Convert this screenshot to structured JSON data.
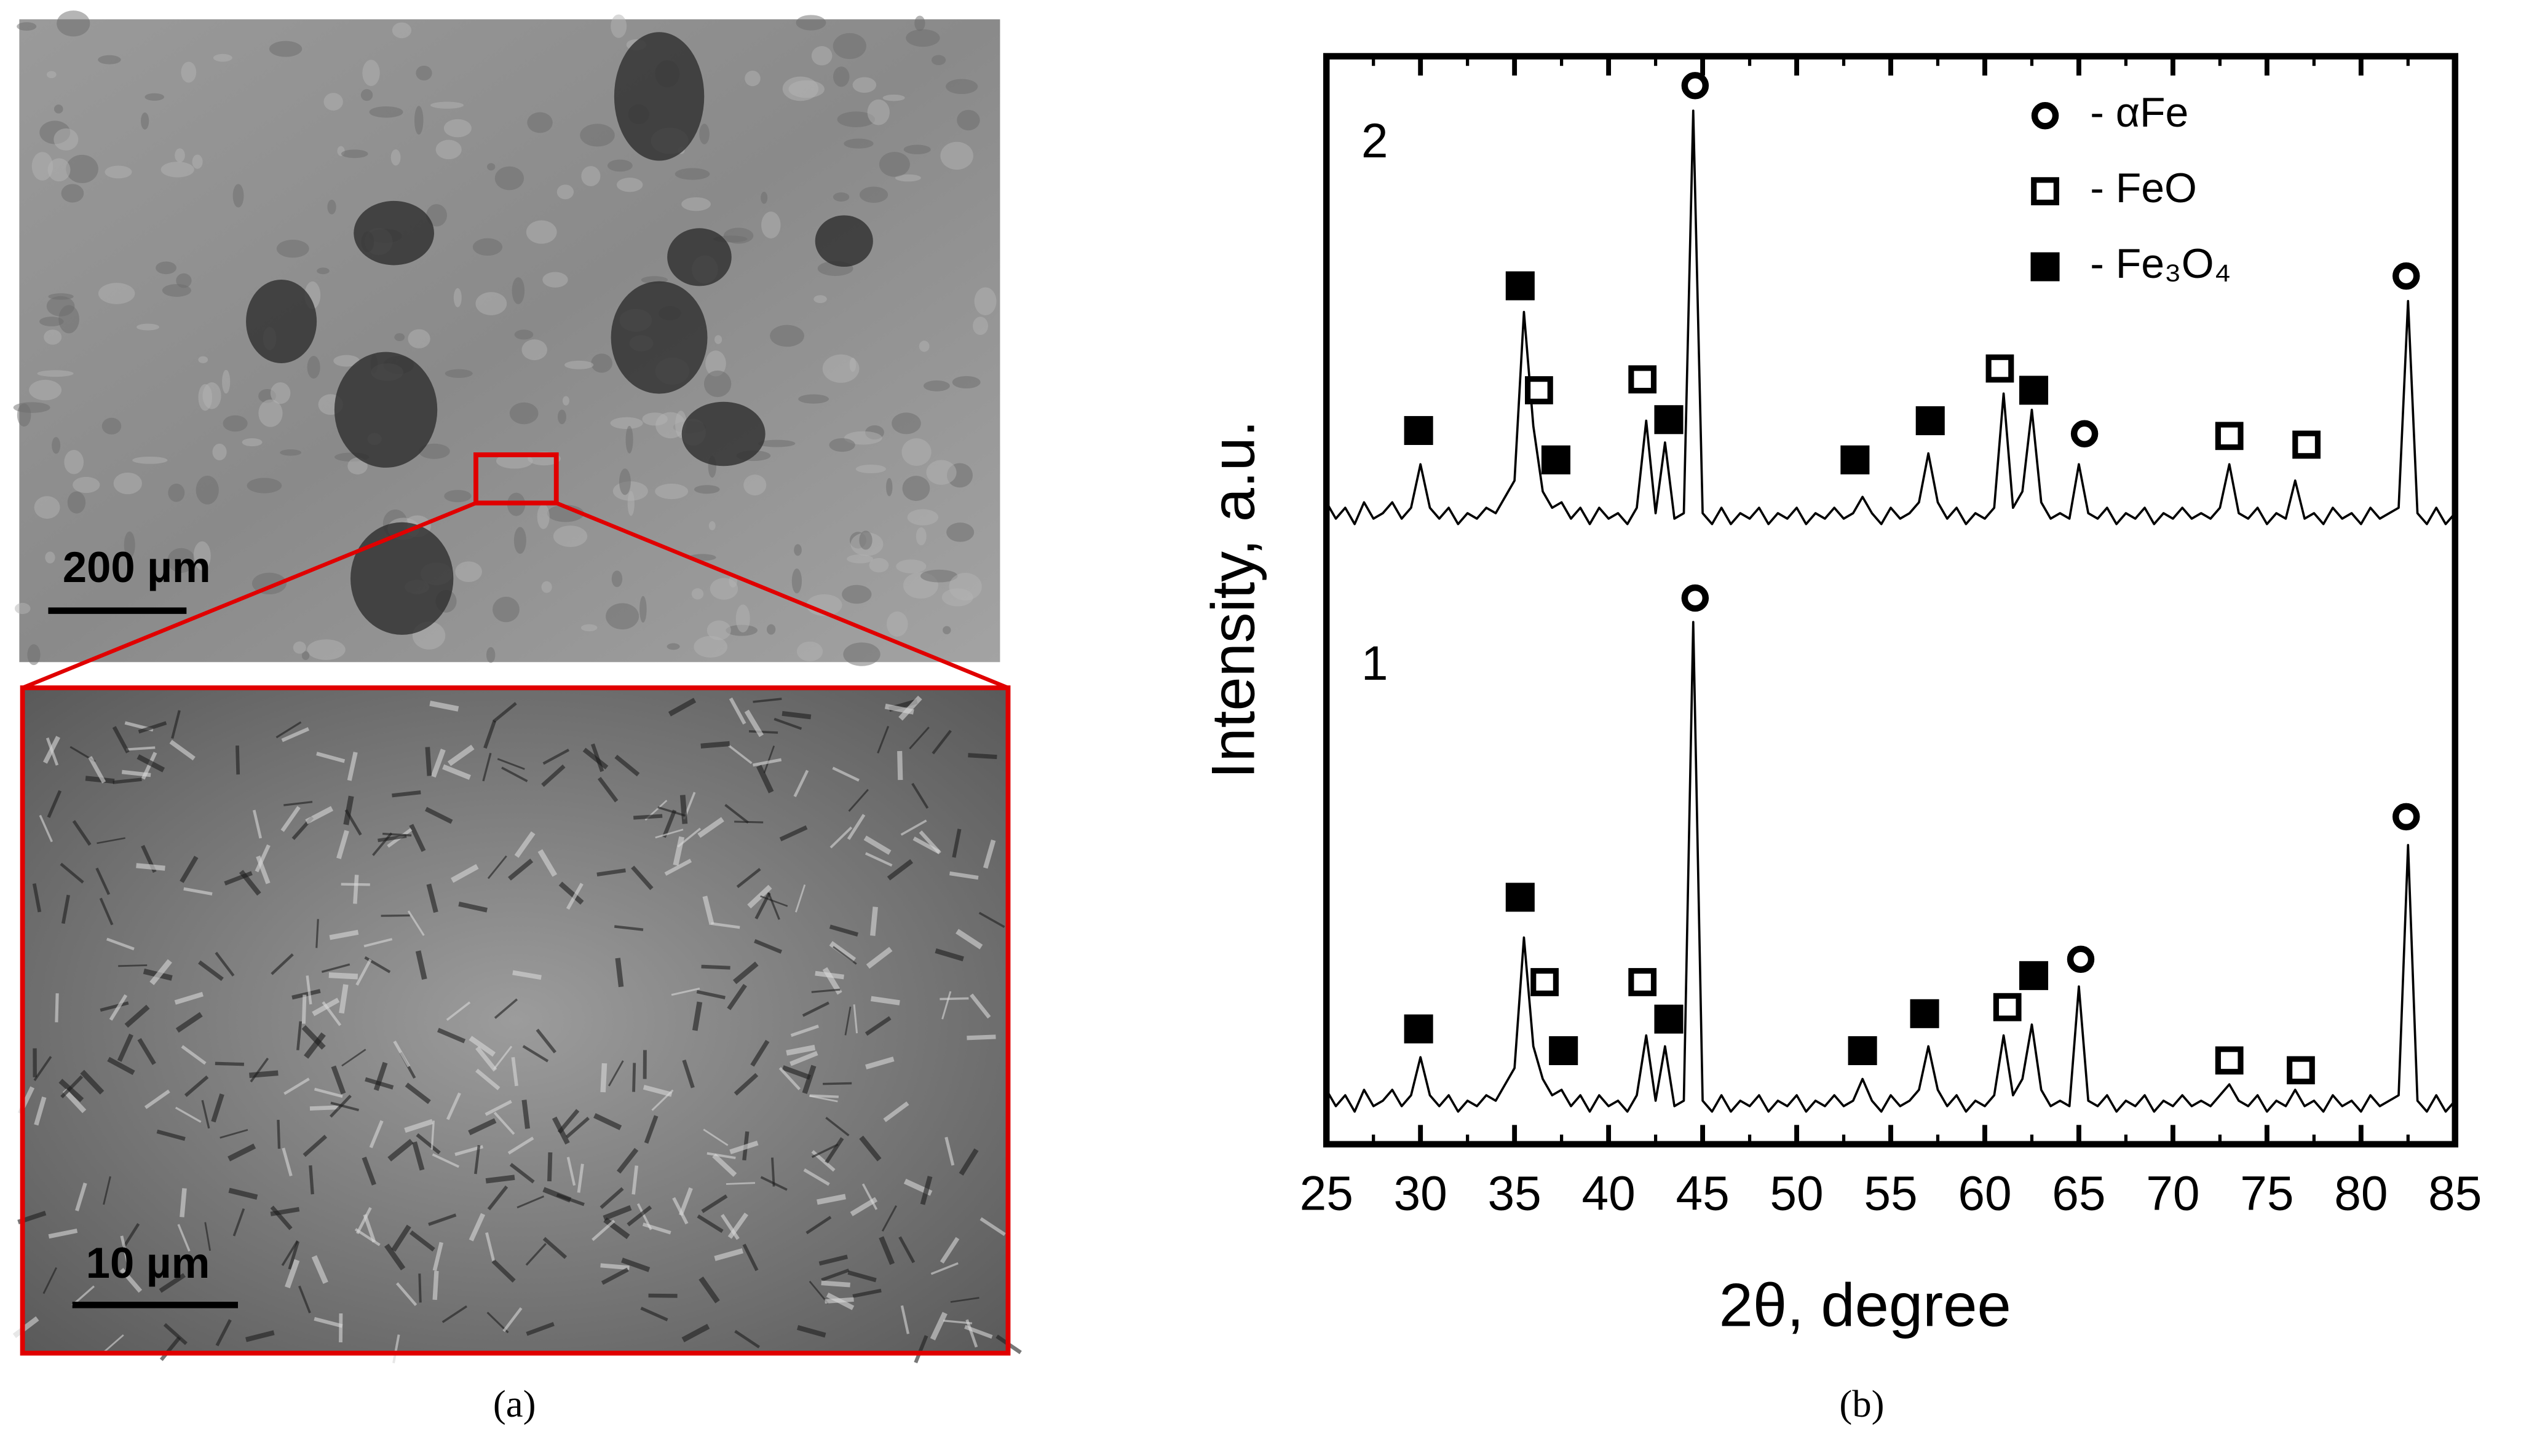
{
  "panel_a": {
    "scale_bar_top": "200 µm",
    "scale_bar_bottom": "10 µm",
    "caption": "(a)"
  },
  "chart_data": {
    "type": "line",
    "caption": "(b)",
    "x_label": "2θ, degree",
    "y_label": "Intensity, a.u.",
    "xlim": [
      25,
      85
    ],
    "xticks": [
      25,
      30,
      35,
      40,
      45,
      50,
      55,
      60,
      65,
      70,
      75,
      80,
      85
    ],
    "minor_xticks": true,
    "ylim": [
      0,
      100
    ],
    "x": [
      25,
      25.5,
      26,
      26.5,
      27,
      27.5,
      28,
      28.5,
      29,
      29.5,
      30,
      30.5,
      31,
      31.5,
      32,
      32.5,
      33,
      33.5,
      34,
      34.5,
      35,
      35.5,
      36,
      36.5,
      37,
      37.5,
      38,
      38.5,
      39,
      39.5,
      40,
      40.5,
      41,
      41.5,
      42,
      42.5,
      43,
      43.5,
      44,
      44.5,
      45,
      45.5,
      46,
      46.5,
      47,
      47.5,
      48,
      48.5,
      49,
      49.5,
      50,
      50.5,
      51,
      51.5,
      52,
      52.5,
      53,
      53.5,
      54,
      54.5,
      55,
      55.5,
      56,
      56.5,
      57,
      57.5,
      58,
      58.5,
      59,
      59.5,
      60,
      60.5,
      61,
      61.5,
      62,
      62.5,
      63,
      63.5,
      64,
      64.5,
      65,
      65.5,
      66,
      66.5,
      67,
      67.5,
      68,
      68.5,
      69,
      69.5,
      70,
      70.5,
      71,
      71.5,
      72,
      72.5,
      73,
      73.5,
      74,
      74.5,
      75,
      75.5,
      76,
      76.5,
      77,
      77.5,
      78,
      78.5,
      79,
      79.5,
      80,
      80.5,
      81,
      81.5,
      82,
      82.5,
      83,
      83.5,
      84,
      84.5,
      85
    ],
    "series": [
      {
        "name": "1",
        "color": "#000000",
        "values": [
          5,
          3.5,
          4.5,
          3,
          5,
          3.5,
          4,
          5,
          3.5,
          4.5,
          8,
          4.5,
          3.5,
          4.5,
          3,
          4,
          3.5,
          4.5,
          4,
          5.5,
          7,
          19,
          9,
          6,
          4.5,
          5,
          3.5,
          4.5,
          3,
          4.5,
          3.5,
          4,
          3,
          4.5,
          10,
          4,
          9,
          3.5,
          4,
          48,
          4,
          3,
          4.5,
          3,
          4,
          3.5,
          4.5,
          3,
          4,
          3.5,
          4.5,
          3,
          4,
          3.5,
          4.5,
          3.5,
          4,
          6,
          4,
          3,
          4.5,
          3.5,
          4,
          5,
          9,
          5,
          3.5,
          4.5,
          3,
          4,
          3.5,
          4.5,
          10,
          4.5,
          6,
          11,
          5,
          3.5,
          4,
          3.5,
          14.5,
          4,
          3.5,
          4.5,
          3,
          4,
          3.5,
          4.5,
          3,
          4,
          3.5,
          4.5,
          3.5,
          4,
          3.5,
          4.5,
          5.5,
          4,
          3.5,
          4.5,
          3,
          4,
          3.5,
          5,
          3.5,
          4,
          3,
          4.5,
          3.5,
          4,
          3,
          4.5,
          3.5,
          4,
          4.5,
          27.5,
          4,
          3,
          4.5,
          3,
          4
        ]
      },
      {
        "name": "2",
        "color": "#000000",
        "values": [
          59,
          57.5,
          58.5,
          57,
          59,
          57.5,
          58,
          59,
          57.5,
          58.5,
          62.5,
          58.5,
          57.5,
          58.5,
          57,
          58,
          57.5,
          58.5,
          58,
          59.5,
          61,
          76.5,
          66,
          60,
          58.5,
          59,
          57.5,
          58.5,
          57,
          58.5,
          57.5,
          58,
          57,
          58.5,
          66.5,
          58,
          64.5,
          57.5,
          58,
          95,
          58,
          57,
          58.5,
          57,
          58,
          57.5,
          58.5,
          57,
          58,
          57.5,
          58.5,
          57,
          58,
          57.5,
          58.5,
          57.5,
          58,
          59.5,
          58,
          57,
          58.5,
          57.5,
          58,
          59,
          63.5,
          59,
          57.5,
          58.5,
          57,
          58,
          57.5,
          58.5,
          69,
          58.5,
          60,
          67.5,
          59,
          57.5,
          58,
          57.5,
          62.5,
          58,
          57.5,
          58.5,
          57,
          58,
          57.5,
          58.5,
          57,
          58,
          57.5,
          58.5,
          57.5,
          58,
          57.5,
          58.5,
          62.5,
          58,
          57.5,
          58.5,
          57,
          58,
          57.5,
          61,
          57.5,
          58,
          57,
          58.5,
          57.5,
          58,
          57,
          58.5,
          57.5,
          58,
          58.5,
          77.5,
          58,
          57,
          58.5,
          57,
          58
        ]
      }
    ],
    "markers": [
      {
        "name": "- αFe",
        "symbol": "circle",
        "x": [
          44.6,
          65.3,
          82.4,
          44.6,
          65.1,
          82.4
        ],
        "y": [
          97.3,
          65.3,
          79.8,
          50.2,
          17.0,
          30.1
        ]
      },
      {
        "name": "- FeO",
        "symbol": "open-square",
        "x": [
          36.3,
          41.8,
          60.8,
          73.0,
          77.1,
          36.6,
          41.8,
          61.2,
          73.0,
          76.8
        ],
        "y": [
          69.3,
          70.3,
          71.3,
          65.1,
          64.3,
          14.9,
          14.9,
          12.6,
          7.7,
          6.8
        ]
      },
      {
        "name": "- Fe₃O₄",
        "symbol": "filled-square",
        "x": [
          29.9,
          35.3,
          37.2,
          43.2,
          53.1,
          57.1,
          62.6,
          29.9,
          35.3,
          37.6,
          43.2,
          53.5,
          56.8,
          62.6
        ],
        "y": [
          65.6,
          78.9,
          62.9,
          66.6,
          62.9,
          66.5,
          69.3,
          10.6,
          22.7,
          8.6,
          11.5,
          8.6,
          12.0,
          15.5
        ]
      }
    ]
  }
}
